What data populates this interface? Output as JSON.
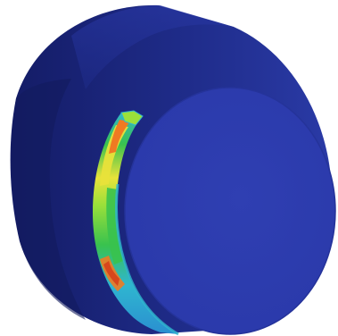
{
  "render": {
    "object": "cylinder-contour-render",
    "colors": {
      "background": "#ffffff",
      "body_dark": "#141c66",
      "body_mid": "#1f2c8a",
      "body_light": "#2a3aa6",
      "face": "#2f3fb2",
      "face_edge": "#25339a",
      "contour_cyan": "#2fb6d0",
      "contour_green": "#39c24e",
      "contour_lime": "#9be03a",
      "contour_yellow": "#e8e23a",
      "contour_orange": "#f07a22",
      "contour_red": "#d8461c"
    }
  }
}
